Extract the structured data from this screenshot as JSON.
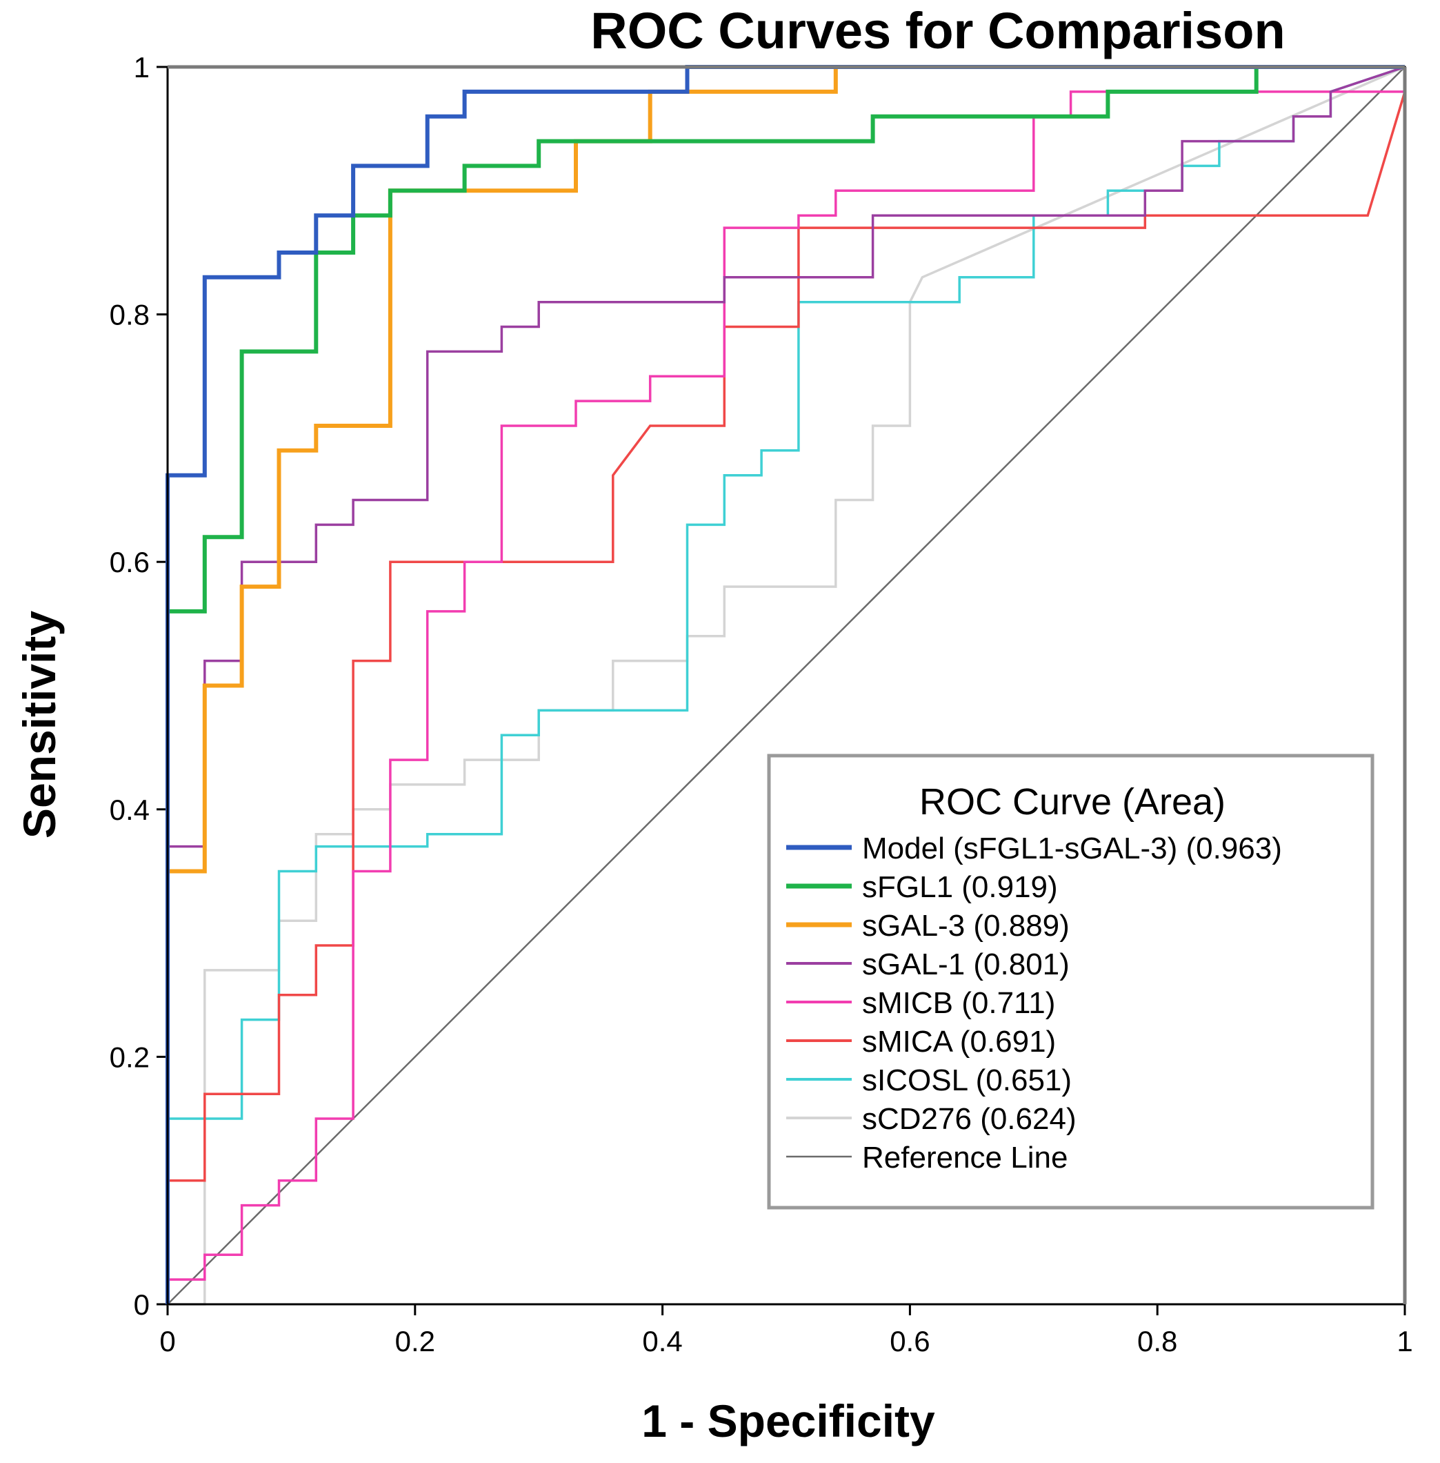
{
  "chart_data": {
    "type": "line",
    "title": "ROC Curves for Comparison",
    "xlabel": "1 - Specificity",
    "ylabel": "Sensitivity",
    "xlim": [
      0,
      1
    ],
    "ylim": [
      0,
      1
    ],
    "xticks": [
      0,
      0.2,
      0.4,
      0.6,
      0.8,
      1
    ],
    "yticks": [
      0,
      0.2,
      0.4,
      0.6,
      0.8,
      1
    ],
    "xtick_labels": [
      "0",
      "0.2",
      "0.4",
      "0.6",
      "0.8",
      "1"
    ],
    "ytick_labels": [
      "0",
      "0.2",
      "0.4",
      "0.6",
      "0.8",
      "1"
    ],
    "legend": {
      "title": "ROC Curve (Area)",
      "placement": "bottom-right"
    },
    "series": [
      {
        "name": "Model (sFGL1-sGAL-3) (0.963)",
        "color": "#2f5cc0",
        "step": true,
        "x": [
          0,
          0,
          0.03,
          0.03,
          0.09,
          0.09,
          0.12,
          0.12,
          0.15,
          0.15,
          0.21,
          0.21,
          0.24,
          0.24,
          0.42,
          0.42,
          1
        ],
        "y": [
          0,
          0.67,
          0.67,
          0.83,
          0.83,
          0.85,
          0.85,
          0.88,
          0.88,
          0.92,
          0.92,
          0.96,
          0.96,
          0.98,
          0.98,
          1,
          1
        ]
      },
      {
        "name": "sFGL1 (0.919)",
        "color": "#1fb34a",
        "step": true,
        "x": [
          0,
          0,
          0.03,
          0.03,
          0.06,
          0.06,
          0.12,
          0.12,
          0.15,
          0.15,
          0.18,
          0.18,
          0.24,
          0.24,
          0.3,
          0.3,
          0.57,
          0.57,
          0.76,
          0.76,
          0.88,
          0.88,
          1
        ],
        "y": [
          0,
          0.56,
          0.56,
          0.62,
          0.62,
          0.77,
          0.77,
          0.85,
          0.85,
          0.88,
          0.88,
          0.9,
          0.9,
          0.92,
          0.92,
          0.94,
          0.94,
          0.96,
          0.96,
          0.98,
          0.98,
          1,
          1
        ]
      },
      {
        "name": "sGAL-3 (0.889)",
        "color": "#f7a01c",
        "step": true,
        "x": [
          0,
          0,
          0.03,
          0.03,
          0.06,
          0.06,
          0.09,
          0.09,
          0.12,
          0.12,
          0.18,
          0.18,
          0.33,
          0.33,
          0.39,
          0.39,
          0.54,
          0.54,
          1
        ],
        "y": [
          0,
          0.35,
          0.35,
          0.5,
          0.5,
          0.58,
          0.58,
          0.69,
          0.69,
          0.71,
          0.71,
          0.9,
          0.9,
          0.94,
          0.94,
          0.98,
          0.98,
          1,
          1
        ]
      },
      {
        "name": "sGAL-1 (0.801)",
        "color": "#9b3fa0",
        "step": true,
        "x": [
          0,
          0,
          0.03,
          0.03,
          0.06,
          0.06,
          0.12,
          0.12,
          0.15,
          0.15,
          0.21,
          0.21,
          0.27,
          0.27,
          0.3,
          0.3,
          0.45,
          0.45,
          0.57,
          0.57,
          0.79,
          0.79,
          0.82,
          0.82,
          0.91,
          0.91,
          0.94,
          0.94,
          1
        ],
        "y": [
          0,
          0.37,
          0.37,
          0.52,
          0.52,
          0.6,
          0.6,
          0.63,
          0.63,
          0.65,
          0.65,
          0.77,
          0.77,
          0.79,
          0.79,
          0.81,
          0.81,
          0.83,
          0.83,
          0.88,
          0.88,
          0.9,
          0.9,
          0.94,
          0.94,
          0.96,
          0.96,
          0.98,
          1
        ]
      },
      {
        "name": "sMICB (0.711)",
        "color": "#f23db0",
        "step": true,
        "x": [
          0,
          0,
          0.03,
          0.03,
          0.06,
          0.06,
          0.09,
          0.09,
          0.12,
          0.12,
          0.15,
          0.15,
          0.18,
          0.18,
          0.21,
          0.21,
          0.24,
          0.24,
          0.27,
          0.27,
          0.33,
          0.33,
          0.39,
          0.39,
          0.45,
          0.45,
          0.51,
          0.51,
          0.54,
          0.54,
          0.7,
          0.7,
          0.73,
          0.73,
          1
        ],
        "y": [
          0,
          0.02,
          0.02,
          0.04,
          0.04,
          0.08,
          0.08,
          0.1,
          0.1,
          0.15,
          0.15,
          0.35,
          0.35,
          0.44,
          0.44,
          0.56,
          0.56,
          0.6,
          0.6,
          0.71,
          0.71,
          0.73,
          0.73,
          0.75,
          0.75,
          0.87,
          0.87,
          0.88,
          0.88,
          0.9,
          0.9,
          0.96,
          0.96,
          0.98,
          0.98
        ]
      },
      {
        "name": "sMICA (0.691)",
        "color": "#f04848",
        "step": true,
        "x": [
          0,
          0,
          0.03,
          0.03,
          0.09,
          0.09,
          0.12,
          0.12,
          0.15,
          0.15,
          0.18,
          0.18,
          0.36,
          0.36,
          0.39,
          0.45,
          0.45,
          0.51,
          0.51,
          0.79,
          0.79,
          0.97,
          1,
          1
        ],
        "y": [
          0,
          0.1,
          0.1,
          0.17,
          0.17,
          0.25,
          0.25,
          0.29,
          0.29,
          0.52,
          0.52,
          0.6,
          0.6,
          0.67,
          0.71,
          0.71,
          0.79,
          0.79,
          0.87,
          0.87,
          0.88,
          0.88,
          0.98,
          1
        ]
      },
      {
        "name": "sICOSL (0.651)",
        "color": "#3fd0d4",
        "step": true,
        "x": [
          0,
          0,
          0.06,
          0.06,
          0.09,
          0.09,
          0.12,
          0.12,
          0.21,
          0.21,
          0.27,
          0.27,
          0.3,
          0.3,
          0.42,
          0.42,
          0.45,
          0.45,
          0.48,
          0.48,
          0.51,
          0.51,
          0.64,
          0.64,
          0.7,
          0.7,
          0.76,
          0.76,
          0.82,
          0.82,
          0.85,
          0.85,
          0.91,
          0.91,
          0.94,
          0.94,
          1
        ],
        "y": [
          0,
          0.15,
          0.15,
          0.23,
          0.23,
          0.35,
          0.35,
          0.37,
          0.37,
          0.38,
          0.38,
          0.46,
          0.46,
          0.48,
          0.48,
          0.63,
          0.63,
          0.67,
          0.67,
          0.69,
          0.69,
          0.81,
          0.81,
          0.83,
          0.83,
          0.88,
          0.88,
          0.9,
          0.9,
          0.92,
          0.92,
          0.94,
          0.94,
          0.96,
          0.96,
          0.98,
          1
        ]
      },
      {
        "name": "sCD276 (0.624)",
        "color": "#d4d4d4",
        "step": true,
        "x": [
          0,
          0.03,
          0.03,
          0.09,
          0.09,
          0.12,
          0.12,
          0.15,
          0.15,
          0.18,
          0.18,
          0.24,
          0.24,
          0.3,
          0.3,
          0.36,
          0.36,
          0.42,
          0.42,
          0.45,
          0.45,
          0.54,
          0.54,
          0.57,
          0.57,
          0.6,
          0.6,
          0.61,
          1
        ],
        "y": [
          0,
          0,
          0.27,
          0.27,
          0.31,
          0.31,
          0.38,
          0.38,
          0.4,
          0.4,
          0.42,
          0.42,
          0.44,
          0.44,
          0.48,
          0.48,
          0.52,
          0.52,
          0.54,
          0.54,
          0.58,
          0.58,
          0.65,
          0.65,
          0.71,
          0.71,
          0.81,
          0.83,
          1
        ]
      },
      {
        "name": "Reference Line",
        "color": "#6b6b6b",
        "step": false,
        "x": [
          0,
          1
        ],
        "y": [
          0,
          1
        ]
      }
    ]
  }
}
